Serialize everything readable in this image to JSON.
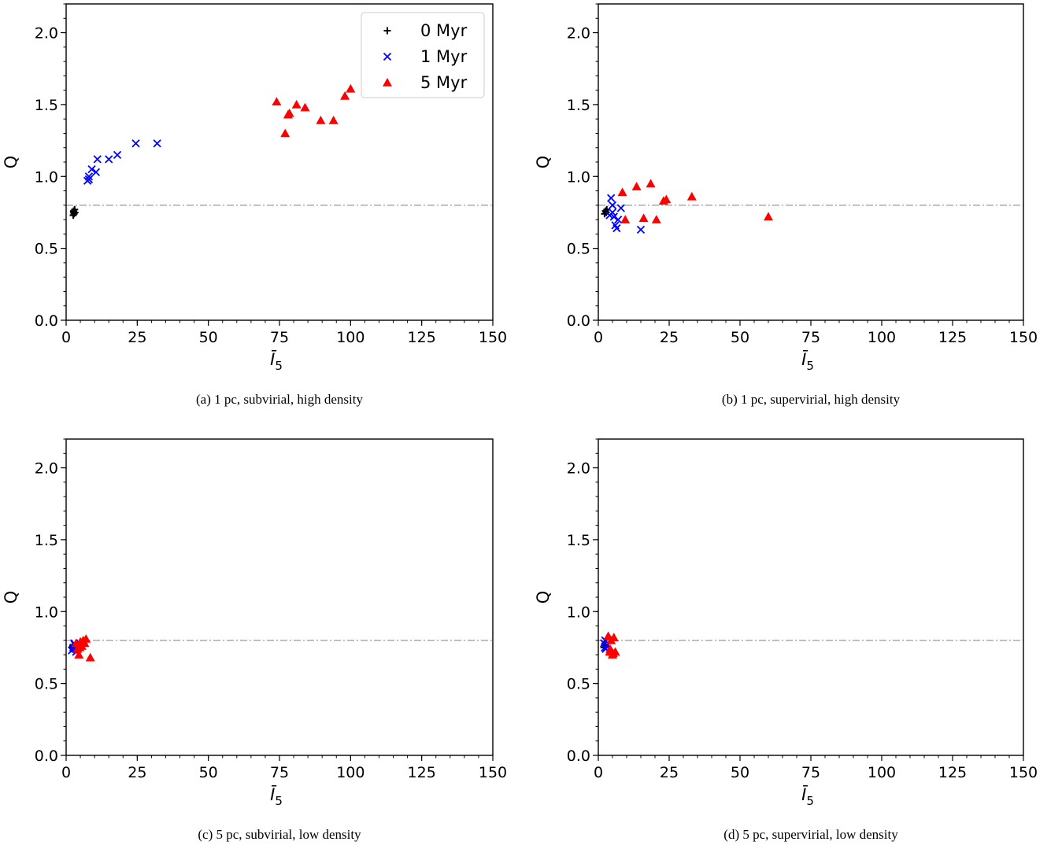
{
  "chart_data": [
    {
      "type": "scatter",
      "caption": "(a)  1 pc, subvirial, high density",
      "xlabel": "Ī",
      "xlabel_sub": "5",
      "ylabel": "Q",
      "xlim": [
        0,
        150
      ],
      "ylim": [
        0,
        2.2
      ],
      "xticks": [
        0,
        25,
        50,
        75,
        100,
        125,
        150
      ],
      "yticks": [
        0.0,
        0.5,
        1.0,
        1.5,
        2.0
      ],
      "xtick_labels": [
        "0",
        "25",
        "50",
        "75",
        "100",
        "125",
        "150"
      ],
      "ytick_labels": [
        "0.0",
        "0.5",
        "1.0",
        "1.5",
        "2.0"
      ],
      "reference_line": {
        "y": 0.8,
        "style": "dash-dot",
        "color": "#b0b0b0"
      },
      "legend": {
        "position": "top-right",
        "entries": [
          "0 Myr",
          "1 Myr",
          "5 Myr"
        ]
      },
      "series": [
        {
          "name": "0 Myr",
          "marker": "plus",
          "color": "#000000",
          "x": [
            2.5,
            2.7,
            3.0,
            2.6,
            2.8,
            3.1
          ],
          "y": [
            0.73,
            0.75,
            0.77,
            0.76,
            0.74,
            0.75
          ]
        },
        {
          "name": "1 Myr",
          "marker": "x",
          "color": "#0000ff",
          "x": [
            7.5,
            8.0,
            9.0,
            10.5,
            11.0,
            15.0,
            18.0,
            24.5,
            32.0,
            8.0
          ],
          "y": [
            0.97,
            1.0,
            1.05,
            1.03,
            1.12,
            1.12,
            1.15,
            1.23,
            1.23,
            0.98
          ]
        },
        {
          "name": "5 Myr",
          "marker": "triangle",
          "color": "#ff0000",
          "x": [
            74.0,
            77.0,
            78.0,
            78.5,
            81.0,
            84.0,
            89.5,
            94.0,
            98.0,
            100.0
          ],
          "y": [
            1.52,
            1.3,
            1.43,
            1.44,
            1.5,
            1.48,
            1.39,
            1.39,
            1.56,
            1.61
          ]
        }
      ]
    },
    {
      "type": "scatter",
      "caption": "(b)  1 pc, supervirial, high density",
      "xlabel": "Ī",
      "xlabel_sub": "5",
      "ylabel": "Q",
      "xlim": [
        0,
        150
      ],
      "ylim": [
        0,
        2.2
      ],
      "xticks": [
        0,
        25,
        50,
        75,
        100,
        125,
        150
      ],
      "yticks": [
        0.0,
        0.5,
        1.0,
        1.5,
        2.0
      ],
      "xtick_labels": [
        "0",
        "25",
        "50",
        "75",
        "100",
        "125",
        "150"
      ],
      "ytick_labels": [
        "0.0",
        "0.5",
        "1.0",
        "1.5",
        "2.0"
      ],
      "reference_line": {
        "y": 0.8,
        "style": "dash-dot",
        "color": "#b0b0b0"
      },
      "series": [
        {
          "name": "0 Myr",
          "marker": "plus",
          "color": "#000000",
          "x": [
            2.2,
            2.5,
            2.8,
            3.0
          ],
          "y": [
            0.74,
            0.76,
            0.75,
            0.77
          ]
        },
        {
          "name": "1 Myr",
          "marker": "x",
          "color": "#0000ff",
          "x": [
            4.0,
            4.5,
            5.0,
            5.5,
            6.0,
            6.5,
            7.0,
            8.0,
            15.0,
            5.0
          ],
          "y": [
            0.73,
            0.85,
            0.8,
            0.72,
            0.66,
            0.64,
            0.7,
            0.78,
            0.63,
            0.75
          ]
        },
        {
          "name": "5 Myr",
          "marker": "triangle",
          "color": "#ff0000",
          "x": [
            8.5,
            9.5,
            13.5,
            16.0,
            18.5,
            20.5,
            23.0,
            24.0,
            33.0,
            60.0
          ],
          "y": [
            0.89,
            0.7,
            0.93,
            0.71,
            0.95,
            0.7,
            0.83,
            0.84,
            0.86,
            0.72
          ]
        }
      ]
    },
    {
      "type": "scatter",
      "caption": "(c)  5 pc, subvirial, low density",
      "xlabel": "Ī",
      "xlabel_sub": "5",
      "ylabel": "Q",
      "xlim": [
        0,
        150
      ],
      "ylim": [
        0,
        2.2
      ],
      "xticks": [
        0,
        25,
        50,
        75,
        100,
        125,
        150
      ],
      "yticks": [
        0.0,
        0.5,
        1.0,
        1.5,
        2.0
      ],
      "xtick_labels": [
        "0",
        "25",
        "50",
        "75",
        "100",
        "125",
        "150"
      ],
      "ytick_labels": [
        "0.0",
        "0.5",
        "1.0",
        "1.5",
        "2.0"
      ],
      "reference_line": {
        "y": 0.8,
        "style": "dash-dot",
        "color": "#b0b0b0"
      },
      "series": [
        {
          "name": "0 Myr",
          "marker": "plus",
          "color": "#000000",
          "x": [
            2.0,
            2.3,
            2.5
          ],
          "y": [
            0.75,
            0.76,
            0.74
          ]
        },
        {
          "name": "1 Myr",
          "marker": "x",
          "color": "#0000ff",
          "x": [
            2.0,
            2.5,
            3.0,
            3.5,
            2.8,
            3.2
          ],
          "y": [
            0.73,
            0.75,
            0.77,
            0.72,
            0.78,
            0.74
          ]
        },
        {
          "name": "5 Myr",
          "marker": "triangle",
          "color": "#ff0000",
          "x": [
            3.5,
            4.0,
            4.5,
            5.0,
            5.5,
            6.0,
            6.5,
            7.0,
            4.8,
            8.5
          ],
          "y": [
            0.78,
            0.74,
            0.7,
            0.79,
            0.76,
            0.8,
            0.78,
            0.81,
            0.75,
            0.68
          ]
        }
      ]
    },
    {
      "type": "scatter",
      "caption": "(d)  5 pc, supervirial, low density",
      "xlabel": "Ī",
      "xlabel_sub": "5",
      "ylabel": "Q",
      "xlim": [
        0,
        150
      ],
      "ylim": [
        0,
        2.2
      ],
      "xticks": [
        0,
        25,
        50,
        75,
        100,
        125,
        150
      ],
      "yticks": [
        0.0,
        0.5,
        1.0,
        1.5,
        2.0
      ],
      "xtick_labels": [
        "0",
        "25",
        "50",
        "75",
        "100",
        "125",
        "150"
      ],
      "ytick_labels": [
        "0.0",
        "0.5",
        "1.0",
        "1.5",
        "2.0"
      ],
      "reference_line": {
        "y": 0.8,
        "style": "dash-dot",
        "color": "#b0b0b0"
      },
      "series": [
        {
          "name": "0 Myr",
          "marker": "plus",
          "color": "#000000",
          "x": [
            2.0,
            2.3,
            2.6
          ],
          "y": [
            0.75,
            0.77,
            0.76
          ]
        },
        {
          "name": "1 Myr",
          "marker": "x",
          "color": "#0000ff",
          "x": [
            2.0,
            2.3,
            2.6,
            3.0,
            2.4
          ],
          "y": [
            0.78,
            0.75,
            0.74,
            0.76,
            0.8
          ]
        },
        {
          "name": "5 Myr",
          "marker": "triangle",
          "color": "#ff0000",
          "x": [
            3.5,
            4.0,
            4.5,
            5.0,
            5.5,
            6.0,
            4.2,
            5.2
          ],
          "y": [
            0.83,
            0.72,
            0.8,
            0.7,
            0.82,
            0.72,
            0.74,
            0.71
          ]
        }
      ]
    }
  ]
}
